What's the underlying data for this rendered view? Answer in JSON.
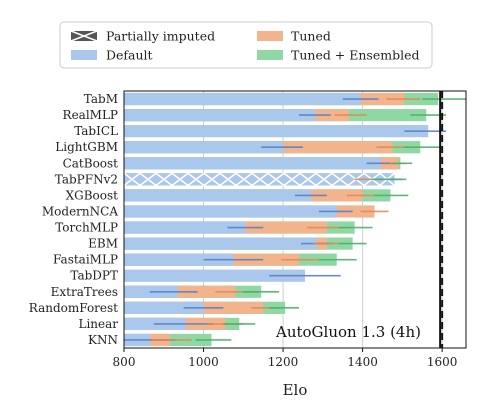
{
  "chart_data": {
    "type": "bar",
    "xlabel": "Elo",
    "xlim": [
      800,
      1660
    ],
    "xticks": [
      800,
      1000,
      1200,
      1400,
      1600
    ],
    "grid": "vertical",
    "legend": {
      "placement": "top",
      "entries": [
        {
          "key": "imputed",
          "label": "Partially imputed",
          "color": "#555555"
        },
        {
          "key": "tuned",
          "label": "Tuned",
          "color": "#f2b48c"
        },
        {
          "key": "default",
          "label": "Default",
          "color": "#a9c8ec"
        },
        {
          "key": "ensembled",
          "label": "Tuned + Ensembled",
          "color": "#8fd8a4"
        }
      ]
    },
    "colors": {
      "default": "#a9c8ec",
      "tuned": "#f2b48c",
      "ensembled": "#8fd8a4",
      "default_ci": "#5b7fc6",
      "tuned_ci": "#e08a55",
      "ensembled_ci": "#4cb06a"
    },
    "categories": [
      "TabM",
      "RealMLP",
      "TabICL",
      "LightGBM",
      "CatBoost",
      "TabPFNv2",
      "XGBoost",
      "ModernNCA",
      "TorchMLP",
      "EBM",
      "FastaiMLP",
      "TabDPT",
      "ExtraTrees",
      "RandomForest",
      "Linear",
      "KNN"
    ],
    "series": [
      {
        "key": "default",
        "values": [
          1395,
          1280,
          1565,
          1200,
          1445,
          1480,
          1270,
          1335,
          1105,
          1285,
          1075,
          1255,
          935,
          1000,
          955,
          865
        ],
        "ci": [
          [
            1350,
            1440
          ],
          [
            1240,
            1320
          ],
          [
            1505,
            1610
          ],
          [
            1145,
            1250
          ],
          [
            1410,
            1480
          ],
          [
            1460,
            1500
          ],
          [
            1230,
            1310
          ],
          [
            1290,
            1375
          ],
          [
            1060,
            1150
          ],
          [
            1245,
            1325
          ],
          [
            1000,
            1150
          ],
          [
            1165,
            1345
          ],
          [
            865,
            985
          ],
          [
            950,
            1050
          ],
          [
            875,
            1025
          ],
          [
            800,
            930
          ]
        ]
      },
      {
        "key": "tuned",
        "values": [
          1505,
          1365,
          null,
          1475,
          1490,
          1410,
          1400,
          1430,
          1310,
          1310,
          1240,
          null,
          1080,
          1150,
          1055,
          915
        ],
        "ci": [
          [
            1460,
            1545
          ],
          [
            1330,
            1410
          ],
          null,
          [
            1435,
            1515
          ],
          [
            1470,
            1510
          ],
          [
            1380,
            1450
          ],
          [
            1360,
            1435
          ],
          [
            1395,
            1465
          ],
          [
            1260,
            1350
          ],
          [
            1275,
            1345
          ],
          [
            1195,
            1290
          ],
          null,
          [
            1030,
            1140
          ],
          [
            1120,
            1190
          ],
          [
            1010,
            1100
          ],
          [
            870,
            970
          ]
        ]
      },
      {
        "key": "ensembled",
        "values": [
          1590,
          1560,
          null,
          1545,
          1495,
          1465,
          1470,
          null,
          1380,
          1375,
          1335,
          null,
          1145,
          1205,
          1090,
          1020
        ],
        "ci": [
          [
            1550,
            1665
          ],
          [
            1520,
            1610
          ],
          null,
          [
            1505,
            1595
          ],
          [
            1475,
            1525
          ],
          [
            1425,
            1510
          ],
          [
            1430,
            1515
          ],
          null,
          [
            1340,
            1425
          ],
          [
            1340,
            1410
          ],
          [
            1290,
            1385
          ],
          null,
          [
            1100,
            1190
          ],
          [
            1165,
            1240
          ],
          [
            1050,
            1130
          ],
          [
            980,
            1070
          ]
        ]
      }
    ],
    "partially_imputed": [
      "TabPFNv2"
    ],
    "reference_lines": [
      {
        "value": 1595,
        "style": "solid",
        "color": "#111111"
      },
      {
        "value": 1600,
        "style": "dashed",
        "color": "#111111"
      }
    ],
    "annotation": "AutoGluon 1.3 (4h)"
  }
}
